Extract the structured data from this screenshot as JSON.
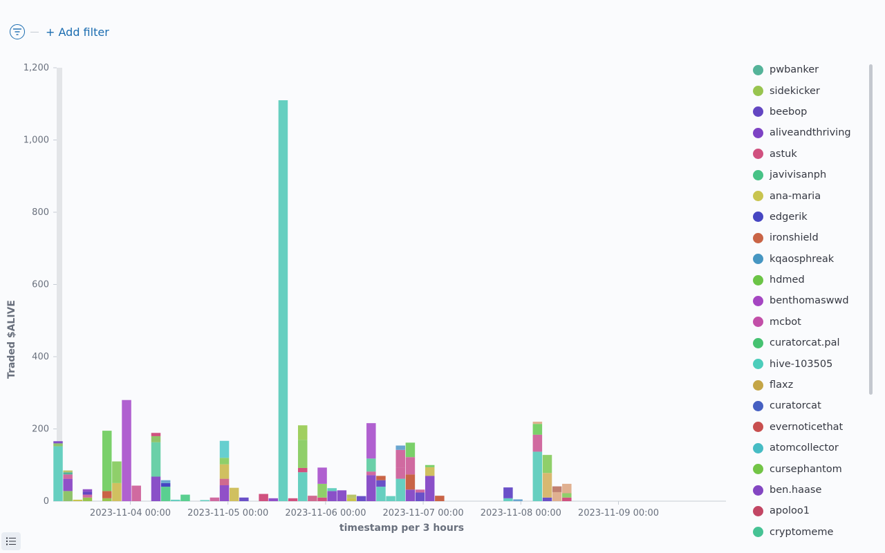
{
  "filter_bar": {
    "add_filter_label": "+ Add filter"
  },
  "chart_data": {
    "type": "bar",
    "stacked": true,
    "xlabel": "timestamp per 3 hours",
    "ylabel": "Traded $ALIVE",
    "ylim": [
      0,
      1200
    ],
    "y_ticks": [
      0,
      200,
      400,
      600,
      800,
      1000,
      1200
    ],
    "y_tick_labels": [
      "0",
      "200",
      "400",
      "600",
      "800",
      "1,000",
      "1,200"
    ],
    "x_tick_labels": [
      "2023-11-04 00:00",
      "2023-11-05 00:00",
      "2023-11-06 00:00",
      "2023-11-07 00:00",
      "2023-11-08 00:00",
      "2023-11-09 00:00"
    ],
    "legend_position": "right",
    "legend": [
      {
        "name": "pwbanker",
        "color": "#54b399"
      },
      {
        "name": "sidekicker",
        "color": "#98c44f"
      },
      {
        "name": "beebop",
        "color": "#6346c2"
      },
      {
        "name": "aliveandthriving",
        "color": "#7d43c4"
      },
      {
        "name": "astuk",
        "color": "#d0517f"
      },
      {
        "name": "javivisanph",
        "color": "#47c286"
      },
      {
        "name": "ana-maria",
        "color": "#c8c44f"
      },
      {
        "name": "edgerik",
        "color": "#4646c2"
      },
      {
        "name": "ironshield",
        "color": "#c96446"
      },
      {
        "name": "kqaosphreak",
        "color": "#4696c2"
      },
      {
        "name": "hdmed",
        "color": "#6bc446"
      },
      {
        "name": "benthomaswwd",
        "color": "#a546c2"
      },
      {
        "name": "mcbot",
        "color": "#c24fa8"
      },
      {
        "name": "curatorcat.pal",
        "color": "#46c271"
      },
      {
        "name": "hive-103505",
        "color": "#4ccdbb"
      },
      {
        "name": "flaxz",
        "color": "#c4a546"
      },
      {
        "name": "curatorcat",
        "color": "#4660c2"
      },
      {
        "name": "evernoticethat",
        "color": "#c84f4f"
      },
      {
        "name": "atomcollector",
        "color": "#46bcc4"
      },
      {
        "name": "cursephantom",
        "color": "#72c446"
      },
      {
        "name": "ben.haase",
        "color": "#8346c2"
      },
      {
        "name": "apoloo1",
        "color": "#c24664"
      },
      {
        "name": "cryptomeme",
        "color": "#46c294"
      }
    ],
    "bars": [
      {
        "x": 0,
        "segments": [
          {
            "c": "#66cfc0",
            "v": 152
          },
          {
            "c": "#8fc36a",
            "v": 8
          },
          {
            "c": "#8050c8",
            "v": 6
          }
        ]
      },
      {
        "x": 1,
        "segments": [
          {
            "c": "#8fc36a",
            "v": 28
          },
          {
            "c": "#9050c8",
            "v": 34
          },
          {
            "c": "#d06aa0",
            "v": 12
          },
          {
            "c": "#54b399",
            "v": 6
          },
          {
            "c": "#b8c46a",
            "v": 5
          }
        ]
      },
      {
        "x": 2,
        "segments": [
          {
            "c": "#c8c44f",
            "v": 4
          }
        ]
      },
      {
        "x": 3,
        "segments": [
          {
            "c": "#98c44f",
            "v": 10
          },
          {
            "c": "#d06aa0",
            "v": 8
          },
          {
            "c": "#6346c2",
            "v": 8
          },
          {
            "c": "#9050c8",
            "v": 7
          }
        ]
      },
      {
        "x": 5,
        "segments": [
          {
            "c": "#98c44f",
            "v": 8
          },
          {
            "c": "#c96446",
            "v": 20
          },
          {
            "c": "#7ad06a",
            "v": 167
          }
        ]
      },
      {
        "x": 6,
        "segments": [
          {
            "c": "#d0c060",
            "v": 50
          },
          {
            "c": "#8fcf6a",
            "v": 60
          }
        ]
      },
      {
        "x": 7,
        "segments": [
          {
            "c": "#b060d0",
            "v": 280
          }
        ]
      },
      {
        "x": 8,
        "segments": [
          {
            "c": "#d06aa0",
            "v": 43
          }
        ]
      },
      {
        "x": 10,
        "segments": [
          {
            "c": "#8a50c8",
            "v": 68
          },
          {
            "c": "#6ad0a8",
            "v": 95
          },
          {
            "c": "#8fc36a",
            "v": 17
          },
          {
            "c": "#d0517f",
            "v": 9
          }
        ]
      },
      {
        "x": 11,
        "segments": [
          {
            "c": "#5acf90",
            "v": 40
          },
          {
            "c": "#4646c2",
            "v": 10
          },
          {
            "c": "#6aa6d0",
            "v": 8
          }
        ]
      },
      {
        "x": 12,
        "segments": [
          {
            "c": "#66cfc0",
            "v": 4
          }
        ]
      },
      {
        "x": 13,
        "segments": [
          {
            "c": "#5acf90",
            "v": 18
          }
        ]
      },
      {
        "x": 15,
        "segments": [
          {
            "c": "#66cfc0",
            "v": 3
          }
        ]
      },
      {
        "x": 16,
        "segments": [
          {
            "c": "#d06aa0",
            "v": 10
          }
        ]
      },
      {
        "x": 17,
        "segments": [
          {
            "c": "#9050c8",
            "v": 44
          },
          {
            "c": "#d06a8f",
            "v": 18
          },
          {
            "c": "#d0c060",
            "v": 40
          },
          {
            "c": "#8fcf6a",
            "v": 18
          },
          {
            "c": "#66cfcf",
            "v": 47
          }
        ]
      },
      {
        "x": 18,
        "segments": [
          {
            "c": "#d0c060",
            "v": 37
          }
        ]
      },
      {
        "x": 19,
        "segments": [
          {
            "c": "#6a50c8",
            "v": 10
          }
        ]
      },
      {
        "x": 21,
        "segments": [
          {
            "c": "#d0517f",
            "v": 20
          }
        ]
      },
      {
        "x": 22,
        "segments": [
          {
            "c": "#9050c8",
            "v": 8
          }
        ]
      },
      {
        "x": 23,
        "segments": [
          {
            "c": "#66cfc0",
            "v": 1110
          }
        ]
      },
      {
        "x": 24,
        "segments": [
          {
            "c": "#d0517f",
            "v": 8
          }
        ]
      },
      {
        "x": 25,
        "segments": [
          {
            "c": "#66cfc0",
            "v": 80
          },
          {
            "c": "#d0517f",
            "v": 12
          },
          {
            "c": "#8fcf6a",
            "v": 78
          },
          {
            "c": "#a0cf60",
            "v": 40
          }
        ]
      },
      {
        "x": 26,
        "segments": [
          {
            "c": "#d06a8f",
            "v": 15
          }
        ]
      },
      {
        "x": 27,
        "segments": [
          {
            "c": "#d0517f",
            "v": 10
          },
          {
            "c": "#8fcf6a",
            "v": 38
          },
          {
            "c": "#b060d0",
            "v": 45
          }
        ]
      },
      {
        "x": 28,
        "segments": [
          {
            "c": "#8a50c8",
            "v": 28
          },
          {
            "c": "#66cfc0",
            "v": 8
          }
        ]
      },
      {
        "x": 29,
        "segments": [
          {
            "c": "#8a50c8",
            "v": 30
          }
        ]
      },
      {
        "x": 30,
        "segments": [
          {
            "c": "#c8c44f",
            "v": 8
          },
          {
            "c": "#b8c46a",
            "v": 10
          }
        ]
      },
      {
        "x": 31,
        "segments": [
          {
            "c": "#6a50c8",
            "v": 14
          }
        ]
      },
      {
        "x": 32,
        "segments": [
          {
            "c": "#8a50c8",
            "v": 72
          },
          {
            "c": "#d06aa0",
            "v": 10
          },
          {
            "c": "#6ad0a8",
            "v": 36
          },
          {
            "c": "#b060d0",
            "v": 98
          }
        ]
      },
      {
        "x": 33,
        "segments": [
          {
            "c": "#66cfc0",
            "v": 40
          },
          {
            "c": "#6a50c8",
            "v": 18
          },
          {
            "c": "#c96446",
            "v": 12
          }
        ]
      },
      {
        "x": 34,
        "segments": [
          {
            "c": "#66cfc0",
            "v": 14
          }
        ]
      },
      {
        "x": 35,
        "segments": [
          {
            "c": "#66cfc0",
            "v": 62
          },
          {
            "c": "#d06aa0",
            "v": 30
          },
          {
            "c": "#d06aa0",
            "v": 50
          },
          {
            "c": "#6aa6d0",
            "v": 12
          }
        ]
      },
      {
        "x": 36,
        "segments": [
          {
            "c": "#8a50c8",
            "v": 32
          },
          {
            "c": "#c96446",
            "v": 42
          },
          {
            "c": "#d06aa0",
            "v": 48
          },
          {
            "c": "#7ad06a",
            "v": 40
          }
        ]
      },
      {
        "x": 37,
        "segments": [
          {
            "c": "#6a50c8",
            "v": 24
          },
          {
            "c": "#d06aa0",
            "v": 8
          }
        ]
      },
      {
        "x": 38,
        "segments": [
          {
            "c": "#8a50c8",
            "v": 70
          },
          {
            "c": "#d0c060",
            "v": 24
          },
          {
            "c": "#7ad06a",
            "v": 6
          }
        ]
      },
      {
        "x": 39,
        "segments": [
          {
            "c": "#c96446",
            "v": 15
          }
        ]
      },
      {
        "x": 46,
        "segments": [
          {
            "c": "#66cfc0",
            "v": 8
          },
          {
            "c": "#6a50c8",
            "v": 30
          }
        ]
      },
      {
        "x": 47,
        "segments": [
          {
            "c": "#6aa6d0",
            "v": 5
          }
        ]
      },
      {
        "x": 49,
        "segments": [
          {
            "c": "#66cfc0",
            "v": 137
          },
          {
            "c": "#d06aa0",
            "v": 47
          },
          {
            "c": "#7ad06a",
            "v": 30
          },
          {
            "c": "#e0b090",
            "v": 6
          }
        ]
      },
      {
        "x": 50,
        "segments": [
          {
            "c": "#6a50c8",
            "v": 10
          },
          {
            "c": "#d8b870",
            "v": 68
          },
          {
            "c": "#8fcf6a",
            "v": 50
          }
        ]
      },
      {
        "x": 51,
        "segments": [
          {
            "c": "#e0b090",
            "v": 25
          },
          {
            "c": "#c08070",
            "v": 16
          }
        ]
      },
      {
        "x": 52,
        "segments": [
          {
            "c": "#d0517f",
            "v": 10
          },
          {
            "c": "#8fcf6a",
            "v": 12
          },
          {
            "c": "#e0b090",
            "v": 26
          }
        ]
      }
    ]
  }
}
